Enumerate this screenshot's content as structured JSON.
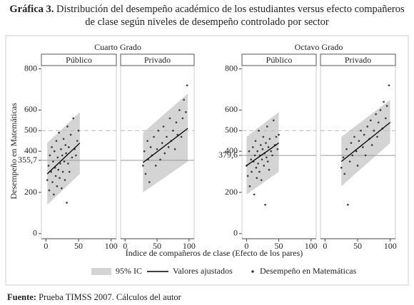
{
  "title_label": "Gráfica 3.",
  "title": "Distribución del desempeño académico de los estudiantes versus efecto compañeros de clase según niveles de desempeño controlado por sector",
  "ylabel": "Desempeño en Matemáticas",
  "xlabel": "Índice de compañeros de clase (Efecto de los pares)",
  "legend": [
    "95% IC",
    "Valores ajustados",
    "Desempeño en Matemáticas"
  ],
  "colors": {
    "ci": "#d4d4d4",
    "fit": "#000000",
    "points": "#3a3a3a"
  },
  "source_label": "Fuente:",
  "source": "Prueba TIMSS 2007. Cálculos del autor",
  "chart_data": [
    {
      "type": "scatter",
      "title": "Cuarto Grado",
      "ylim": [
        -25,
        830
      ],
      "yticks": [
        0,
        200,
        {
          "value": 355.7,
          "label": "355,7"
        },
        400,
        500,
        600,
        800
      ],
      "hlines": [
        {
          "value": 500,
          "style": "dashed"
        },
        {
          "value": 355.7,
          "style": "solid"
        }
      ],
      "panels": [
        {
          "name": "Público",
          "xlim": [
            -7,
            108
          ],
          "xticks": [
            0,
            50,
            100
          ],
          "x": [
            2,
            4,
            5,
            6,
            8,
            9,
            10,
            11,
            12,
            13,
            14,
            15,
            16,
            17,
            18,
            19,
            20,
            21,
            22,
            23,
            24,
            25,
            26,
            27,
            28,
            29,
            30,
            31,
            32,
            33,
            34,
            35,
            36,
            38,
            40,
            42,
            44,
            46,
            48,
            50
          ],
          "y": [
            260,
            330,
            210,
            380,
            300,
            420,
            250,
            350,
            190,
            400,
            320,
            280,
            450,
            230,
            370,
            310,
            490,
            270,
            340,
            410,
            220,
            380,
            300,
            460,
            350,
            260,
            430,
            390,
            150,
            520,
            340,
            420,
            300,
            480,
            370,
            560,
            410,
            380,
            450,
            500
          ],
          "fit": {
            "x": [
              2,
              52
            ],
            "y": [
              290,
              440
            ]
          },
          "ci": {
            "lower": [
              140,
              290
            ],
            "upper": [
              440,
              590
            ]
          }
        },
        {
          "name": "Privado",
          "xlim": [
            -7,
            108
          ],
          "xticks": [
            0,
            50,
            100
          ],
          "x": [
            28,
            30,
            32,
            35,
            36,
            38,
            40,
            42,
            45,
            48,
            50,
            52,
            55,
            58,
            60,
            62,
            65,
            68,
            70,
            72,
            75,
            78,
            80,
            82,
            85,
            88,
            90,
            92,
            95,
            97
          ],
          "y": [
            330,
            400,
            290,
            450,
            360,
            250,
            420,
            380,
            470,
            330,
            410,
            500,
            360,
            440,
            520,
            390,
            470,
            420,
            560,
            450,
            500,
            410,
            540,
            480,
            600,
            470,
            560,
            650,
            590,
            720
          ],
          "fit": {
            "x": [
              28,
              98
            ],
            "y": [
              345,
              511
            ]
          },
          "ci": {
            "lower": [
              200,
              350
            ],
            "upper": [
              490,
              680
            ]
          }
        }
      ]
    },
    {
      "type": "scatter",
      "title": "Octavo Grado",
      "ylim": [
        -25,
        830
      ],
      "yticks": [
        0,
        200,
        {
          "value": 379.6,
          "label": "379,6"
        },
        400,
        500,
        600,
        800
      ],
      "hlines": [
        {
          "value": 500,
          "style": "dashed"
        },
        {
          "value": 379.6,
          "style": "solid"
        }
      ],
      "panels": [
        {
          "name": "Público",
          "xlim": [
            -7,
            108
          ],
          "xticks": [
            0,
            50,
            100
          ],
          "x": [
            0,
            2,
            4,
            5,
            7,
            8,
            10,
            11,
            12,
            13,
            14,
            15,
            16,
            17,
            18,
            19,
            20,
            21,
            22,
            23,
            24,
            25,
            26,
            27,
            28,
            29,
            30,
            31,
            32,
            33,
            34,
            35,
            36,
            38,
            40,
            42,
            44,
            46,
            48,
            50
          ],
          "y": [
            330,
            280,
            400,
            230,
            360,
            300,
            420,
            350,
            190,
            380,
            450,
            320,
            270,
            400,
            340,
            500,
            300,
            380,
            430,
            260,
            360,
            410,
            470,
            330,
            390,
            140,
            440,
            370,
            520,
            350,
            420,
            310,
            460,
            400,
            380,
            550,
            430,
            470,
            410,
            480
          ],
          "fit": {
            "x": [
              0,
              50
            ],
            "y": [
              330,
              440
            ]
          },
          "ci": {
            "lower": [
              190,
              300
            ],
            "upper": [
              470,
              590
            ]
          }
        },
        {
          "name": "Privado",
          "xlim": [
            -7,
            108
          ],
          "xticks": [
            0,
            50,
            100
          ],
          "x": [
            25,
            28,
            30,
            33,
            35,
            38,
            40,
            42,
            45,
            48,
            50,
            52,
            55,
            58,
            60,
            62,
            65,
            68,
            70,
            72,
            75,
            78,
            80,
            82,
            85,
            88,
            90,
            93,
            95,
            98
          ],
          "y": [
            320,
            370,
            290,
            410,
            140,
            350,
            440,
            380,
            470,
            400,
            330,
            450,
            500,
            420,
            480,
            380,
            520,
            460,
            550,
            430,
            500,
            580,
            470,
            540,
            600,
            510,
            640,
            560,
            620,
            720
          ],
          "fit": {
            "x": [
              25,
              100
            ],
            "y": [
              350,
              540
            ]
          },
          "ci": {
            "lower": [
              230,
              440
            ],
            "upper": [
              470,
              650
            ]
          }
        }
      ]
    }
  ]
}
